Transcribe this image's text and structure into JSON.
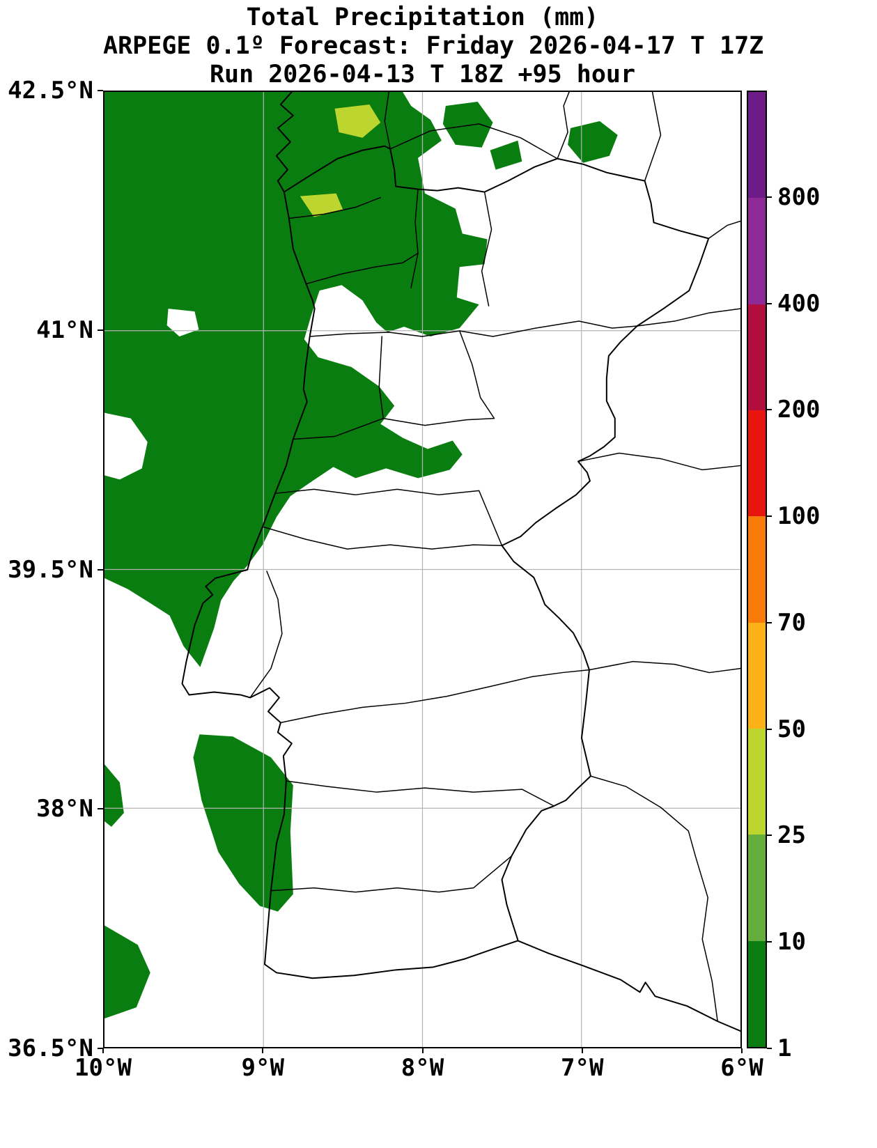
{
  "figure": {
    "title_line1": "Total Precipitation (mm)",
    "title_line2": "ARPEGE 0.1º Forecast: Friday 2026-04-17 T 17Z",
    "title_line3": "Run 2026-04-13 T 18Z +95 hour"
  },
  "axes": {
    "y_ticks": [
      "42.5°N",
      "41°N",
      "39.5°N",
      "38°N",
      "36.5°N"
    ],
    "x_ticks": [
      "10°W",
      "9°W",
      "8°W",
      "7°W",
      "6°W"
    ]
  },
  "colorbar": {
    "tick_labels": [
      "800",
      "400",
      "200",
      "100",
      "70",
      "50",
      "25",
      "10",
      "1"
    ],
    "segments": [
      {
        "range": "1-10",
        "color": "#0a7d10"
      },
      {
        "range": "10-25",
        "color": "#64ad3d"
      },
      {
        "range": "25-50",
        "color": "#bdd62f"
      },
      {
        "range": "50-70",
        "color": "#fbb117"
      },
      {
        "range": "70-100",
        "color": "#f87b09"
      },
      {
        "range": "100-200",
        "color": "#e8150e"
      },
      {
        "range": "200-400",
        "color": "#b20e3d"
      },
      {
        "range": "400-800",
        "color": "#8e2a96"
      },
      {
        "range": "800plus",
        "color": "#6d1b87"
      }
    ]
  },
  "colors": {
    "precip_low": "#0a7d10",
    "precip_mid": "#bdd62f",
    "coastline": "#000000",
    "gridline": "#b4b4b4"
  },
  "chart_data": {
    "type": "heatmap",
    "title": "Total Precipitation (mm)",
    "model": "ARPEGE 0.1º",
    "valid_time": "Friday 2026-04-17 T 17Z",
    "run": "2026-04-13 T 18Z +95 hour",
    "lon_range": [
      "10°W",
      "6°W"
    ],
    "lat_range": [
      "36.5°N",
      "42.5°N"
    ],
    "levels_mm": [
      1,
      10,
      25,
      50,
      70,
      100,
      200,
      400,
      800
    ],
    "level_colors": [
      "#0a7d10",
      "#64ad3d",
      "#bdd62f",
      "#fbb117",
      "#f87b09",
      "#e8150e",
      "#b20e3d",
      "#8e2a96",
      "#6d1b87"
    ],
    "grid": true,
    "legend_position": "right-colorbar",
    "observations": [
      {
        "region": "Atlantic Ocean west of northern and central Portugal",
        "precip_mm": "1-10"
      },
      {
        "region": "Minho / Douro Litoral and NW interior of Portugal",
        "precip_mm": "1-10"
      },
      {
        "region": "Small cores near NW coast close to the Galicia border",
        "precip_mm": "25-50"
      },
      {
        "region": "Isolated patches in southern Galicia / Ourense area (NE of map)",
        "precip_mm": "1-10"
      },
      {
        "region": "Atlantic strip off the Alentejo coast near Sines",
        "precip_mm": "1-10"
      },
      {
        "region": "Small cells at far SW ocean edge",
        "precip_mm": "1-10"
      },
      {
        "region": "Central / southern interior Portugal and western Spain",
        "precip_mm": "0 (no shading)"
      }
    ]
  }
}
